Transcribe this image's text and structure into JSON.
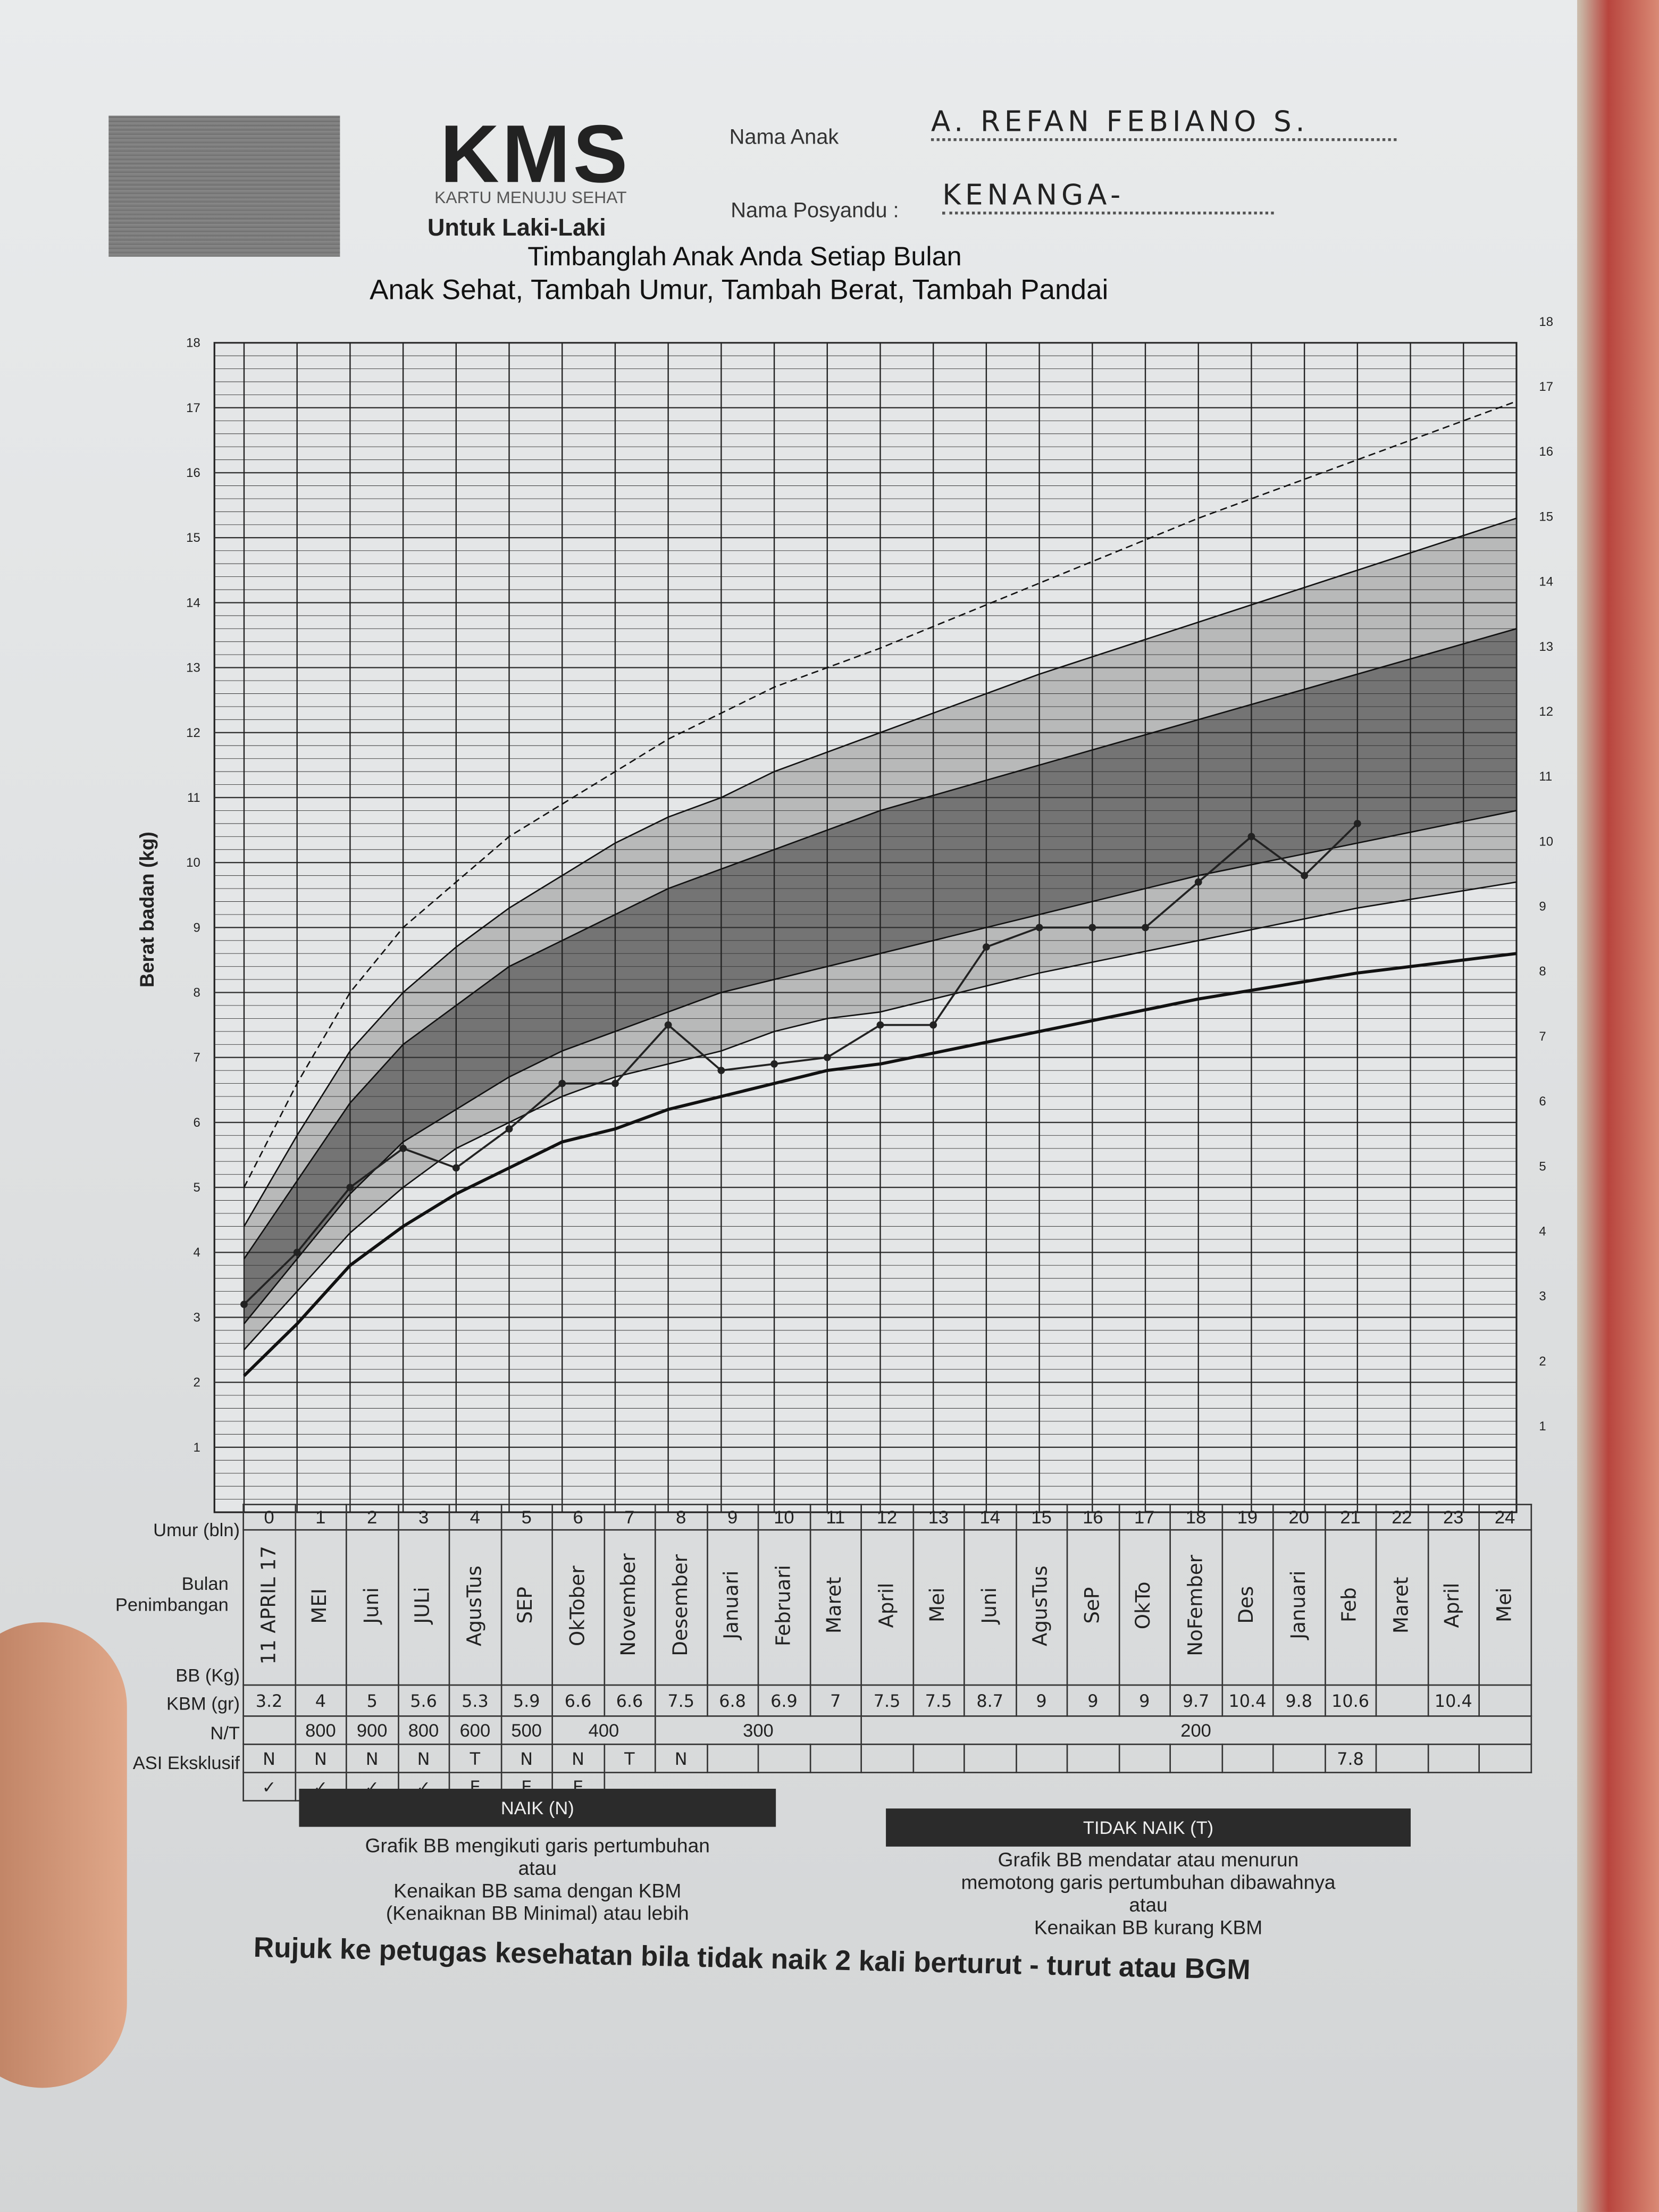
{
  "header": {
    "logo_text": "KMS",
    "logo_subtitle": "KARTU MENUJU SEHAT",
    "gender_label": "Untuk Laki-Laki",
    "child_name_label": "Nama Anak",
    "child_name_value": "A. REFAN FEBIANO S.",
    "posyandu_label": "Nama Posyandu :",
    "posyandu_value": "KENANGA-",
    "slogan_1": "Timbanglah Anak Anda Setiap Bulan",
    "slogan_2": "Anak Sehat, Tambah Umur, Tambah Berat, Tambah Pandai"
  },
  "chart_data": {
    "type": "line",
    "ylabel": "Berat badan (kg)",
    "xlabel": "Umur (bln)",
    "xlim": [
      0,
      24
    ],
    "ylim": [
      0,
      18
    ],
    "yticks": [
      1,
      2,
      3,
      4,
      5,
      6,
      7,
      8,
      9,
      10,
      11,
      12,
      13,
      14,
      15,
      16,
      17,
      18
    ],
    "grid": true,
    "reference_curves_months": [
      0,
      1,
      2,
      3,
      4,
      5,
      6,
      7,
      8,
      9,
      10,
      11,
      12,
      15,
      18,
      21,
      24
    ],
    "reference_curves": [
      [
        2.1,
        2.9,
        3.8,
        4.4,
        4.9,
        5.3,
        5.7,
        5.9,
        6.2,
        6.4,
        6.6,
        6.8,
        6.9,
        7.4,
        7.9,
        8.3,
        8.6
      ],
      [
        2.5,
        3.4,
        4.3,
        5.0,
        5.6,
        6.0,
        6.4,
        6.7,
        6.9,
        7.1,
        7.4,
        7.6,
        7.7,
        8.3,
        8.8,
        9.3,
        9.7
      ],
      [
        2.9,
        3.9,
        4.9,
        5.7,
        6.2,
        6.7,
        7.1,
        7.4,
        7.7,
        8.0,
        8.2,
        8.4,
        8.6,
        9.2,
        9.8,
        10.3,
        10.8
      ],
      [
        3.9,
        5.1,
        6.3,
        7.2,
        7.8,
        8.4,
        8.8,
        9.2,
        9.6,
        9.9,
        10.2,
        10.5,
        10.8,
        11.5,
        12.2,
        12.9,
        13.6
      ],
      [
        4.4,
        5.8,
        7.1,
        8.0,
        8.7,
        9.3,
        9.8,
        10.3,
        10.7,
        11.0,
        11.4,
        11.7,
        12.0,
        12.9,
        13.7,
        14.5,
        15.3
      ],
      [
        5.0,
        6.6,
        8.0,
        9.0,
        9.7,
        10.4,
        10.9,
        11.4,
        11.9,
        12.3,
        12.7,
        13.0,
        13.3,
        14.3,
        15.3,
        16.2,
        17.1
      ]
    ],
    "weights": {
      "x": [
        0,
        1,
        2,
        3,
        4,
        5,
        6,
        7,
        8,
        9,
        10,
        11,
        12,
        13,
        14,
        15,
        16,
        17,
        18,
        19,
        20,
        21
      ],
      "y": [
        3.2,
        4,
        5,
        5.6,
        5.3,
        5.9,
        6.6,
        6.6,
        7.5,
        6.8,
        6.9,
        7,
        7.5,
        7.5,
        8.7,
        9,
        9,
        9,
        9.7,
        10.4,
        9.8,
        10.6
      ]
    },
    "colors": {
      "band_dark": "#5e5e5e",
      "band_light": "#a9a9a9",
      "line": "#222222"
    }
  },
  "table": {
    "labels": {
      "age": "Umur (bln)",
      "month": "Bulan Penimbangan",
      "weight": "BB (Kg)",
      "kbm": "KBM (gr)",
      "nt": "N/T",
      "asi": "ASI Eksklusif"
    },
    "ages": [
      "0",
      "1",
      "2",
      "3",
      "4",
      "5",
      "6",
      "7",
      "8",
      "9",
      "10",
      "11",
      "12",
      "13",
      "14",
      "15",
      "16",
      "17",
      "18",
      "19",
      "20",
      "21",
      "22",
      "23",
      "24"
    ],
    "months": [
      "11 APRIL 17",
      "MEI",
      "Juni",
      "JULi",
      "AgusTus",
      "SEP",
      "OkTober",
      "November",
      "Desember",
      "Januari",
      "Februari",
      "Maret",
      "April",
      "Mei",
      "Juni",
      "AgusTus",
      "SeP",
      "OkTo",
      "NoFember",
      "Des",
      "Januari",
      "Feb",
      "Maret",
      "April",
      "Mei"
    ],
    "weights": [
      "3.2",
      "4",
      "5",
      "5.6",
      "5.3",
      "5.9",
      "6.6",
      "6.6",
      "7.5",
      "6.8",
      "6.9",
      "7",
      "7.5",
      "7.5",
      "8.7",
      "9",
      "9",
      "9",
      "9.7",
      "10.4",
      "9.8",
      "10.6",
      "",
      "10.4",
      ""
    ],
    "kbm": [
      {
        "label": "",
        "span": 1
      },
      {
        "label": "800",
        "span": 1
      },
      {
        "label": "900",
        "span": 1
      },
      {
        "label": "800",
        "span": 1
      },
      {
        "label": "600",
        "span": 1
      },
      {
        "label": "500",
        "span": 1
      },
      {
        "label": "400",
        "span": 2
      },
      {
        "label": "300",
        "span": 4
      },
      {
        "label": "200",
        "span": 13
      }
    ],
    "nt": [
      "N",
      "N",
      "N",
      "N",
      "T",
      "N",
      "N",
      "T",
      "N",
      "",
      "",
      "",
      "",
      "",
      "",
      "",
      "",
      "",
      "",
      "",
      "",
      "7.8",
      "",
      "",
      ""
    ],
    "asi": [
      "✓",
      "✓",
      "✓",
      "✓",
      "E",
      "E",
      "E"
    ]
  },
  "legend": {
    "naik_title": "NAIK (N)",
    "naik_lines": [
      "Grafik BB mengikuti garis pertumbuhan",
      "atau",
      "Kenaikan BB sama dengan KBM",
      "(Kenaiknan BB Minimal) atau lebih"
    ],
    "tidak_title": "TIDAK NAIK (T)",
    "tidak_lines": [
      "Grafik BB mendatar atau menurun",
      "memotong garis pertumbuhan dibawahnya",
      "atau",
      "Kenaikan BB kurang KBM"
    ],
    "footer": "Rujuk ke petugas kesehatan bila tidak naik 2 kali berturut - turut atau BGM"
  }
}
